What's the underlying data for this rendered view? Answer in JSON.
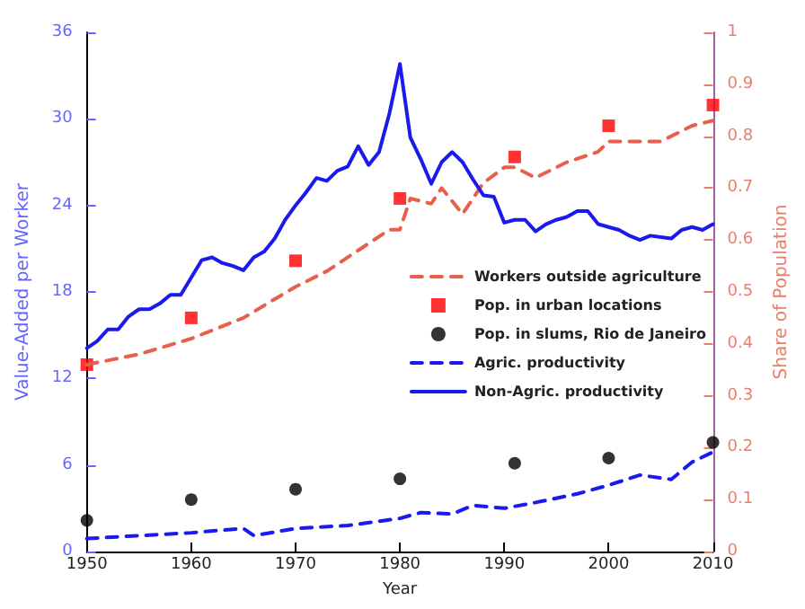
{
  "chart_data": {
    "type": "line",
    "xlabel": "Year",
    "ylabel": "Value-Added per Worker",
    "y2label": "Share of Population",
    "xlim": [
      1950,
      2010
    ],
    "xticks": [
      1950,
      1960,
      1970,
      1980,
      1990,
      2000,
      2010
    ],
    "ylim": [
      0,
      36
    ],
    "yticks": [
      0,
      6,
      12,
      18,
      24,
      30,
      36
    ],
    "y2lim": [
      0,
      1
    ],
    "y2ticks": [
      0,
      0.1,
      0.2,
      0.3,
      0.4,
      0.5,
      0.6,
      0.7,
      0.8,
      0.9,
      1
    ],
    "grid": false,
    "legend": "right",
    "series": [
      {
        "name": "Workers outside agriculture",
        "axis": "y2",
        "color": "#e8604c",
        "line_style": "dashed",
        "marker": "none",
        "x": [
          1950,
          1955,
          1960,
          1965,
          1970,
          1973,
          1976,
          1979,
          1980,
          1981,
          1983,
          1984,
          1986,
          1988,
          1990,
          1991,
          1993,
          1996,
          1999,
          2000,
          2002,
          2005,
          2008,
          2010
        ],
        "values": [
          0.36,
          0.38,
          0.41,
          0.45,
          0.51,
          0.54,
          0.58,
          0.62,
          0.62,
          0.68,
          0.67,
          0.7,
          0.65,
          0.71,
          0.74,
          0.74,
          0.72,
          0.75,
          0.77,
          0.79,
          0.79,
          0.79,
          0.82,
          0.83
        ]
      },
      {
        "name": "Pop. in urban locations",
        "type": "scatter",
        "axis": "y2",
        "color": "#ff0000",
        "marker": "square",
        "x": [
          1950,
          1960,
          1970,
          1980,
          1991,
          2000,
          2010
        ],
        "values": [
          0.36,
          0.45,
          0.56,
          0.68,
          0.76,
          0.82,
          0.86
        ]
      },
      {
        "name": "Pop. in slums, Rio de Janeiro",
        "type": "scatter",
        "axis": "y2",
        "color": "#000000",
        "marker": "circle",
        "x": [
          1950,
          1960,
          1970,
          1980,
          1991,
          2000,
          2010
        ],
        "values": [
          0.06,
          0.1,
          0.12,
          0.14,
          0.17,
          0.18,
          0.21
        ]
      },
      {
        "name": "Agric. productivity",
        "axis": "y",
        "color": "#1a1aee",
        "line_style": "dashed",
        "marker": "none",
        "x": [
          1950,
          1960,
          1965,
          1966,
          1970,
          1975,
          1980,
          1982,
          1985,
          1987,
          1990,
          1993,
          1997,
          2000,
          2003,
          2006,
          2008,
          2010
        ],
        "values": [
          0.9,
          1.3,
          1.6,
          1.1,
          1.6,
          1.8,
          2.3,
          2.7,
          2.6,
          3.2,
          3.0,
          3.4,
          4.0,
          4.6,
          5.3,
          5.0,
          6.2,
          6.9
        ]
      },
      {
        "name": "Non-Agric. productivity",
        "axis": "y",
        "color": "#1a1aee",
        "line_style": "solid",
        "marker": "none",
        "x": [
          1950,
          1951,
          1952,
          1953,
          1954,
          1955,
          1956,
          1957,
          1958,
          1959,
          1960,
          1961,
          1962,
          1963,
          1964,
          1965,
          1966,
          1967,
          1968,
          1969,
          1970,
          1971,
          1972,
          1973,
          1974,
          1975,
          1976,
          1977,
          1978,
          1979,
          1980,
          1981,
          1982,
          1983,
          1984,
          1985,
          1986,
          1987,
          1988,
          1989,
          1990,
          1991,
          1992,
          1993,
          1994,
          1995,
          1996,
          1997,
          1998,
          1999,
          2000,
          2001,
          2002,
          2003,
          2004,
          2005,
          2006,
          2007,
          2008,
          2009,
          2010
        ],
        "values": [
          14.1,
          14.6,
          15.4,
          15.4,
          16.3,
          16.8,
          16.8,
          17.2,
          17.8,
          17.8,
          19.0,
          20.2,
          20.4,
          20.0,
          19.8,
          19.5,
          20.4,
          20.8,
          21.7,
          23.0,
          24.0,
          24.9,
          25.9,
          25.7,
          26.4,
          26.7,
          28.1,
          26.8,
          27.7,
          30.4,
          33.8,
          28.7,
          27.2,
          25.5,
          27.0,
          27.7,
          27.0,
          25.8,
          24.7,
          24.6,
          22.8,
          23.0,
          23.0,
          22.2,
          22.7,
          23.0,
          23.2,
          23.6,
          23.6,
          22.7,
          22.5,
          22.3,
          21.9,
          21.6,
          21.9,
          21.8,
          21.7,
          22.3,
          22.5,
          22.3,
          22.7
        ]
      }
    ]
  }
}
